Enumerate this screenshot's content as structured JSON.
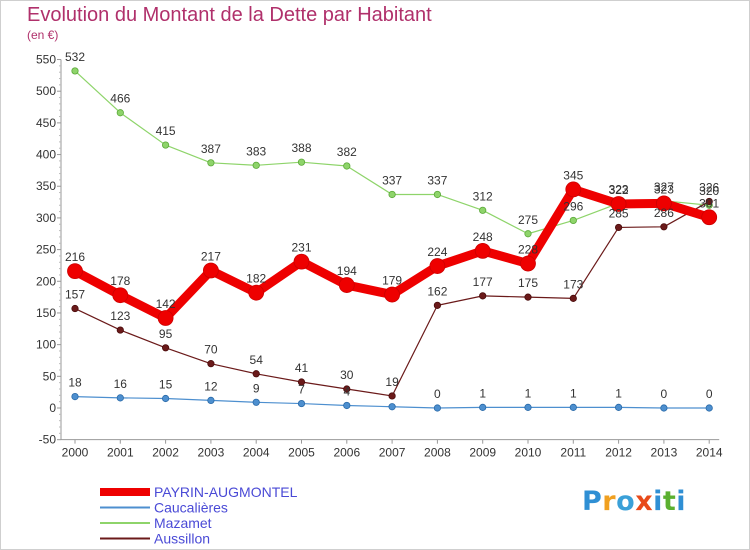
{
  "chart_data": {
    "type": "line",
    "title": "Evolution du Montant de la Dette par Habitant",
    "subtitle": "(en €)",
    "x": [
      "2000",
      "2001",
      "2002",
      "2003",
      "2004",
      "2005",
      "2006",
      "2007",
      "2008",
      "2009",
      "2010",
      "2011",
      "2012",
      "2013",
      "2014"
    ],
    "ylim": [
      -50,
      550
    ],
    "yticks": [
      -50,
      0,
      50,
      100,
      150,
      200,
      250,
      300,
      350,
      400,
      450,
      500,
      550
    ],
    "grid": false,
    "legend_position": "bottom-left",
    "series": [
      {
        "name": "PAYRIN-AUGMONTEL",
        "color": "#ee0000",
        "values": [
          216,
          178,
          142,
          217,
          182,
          231,
          194,
          179,
          224,
          248,
          228,
          345,
          322,
          323,
          301
        ]
      },
      {
        "name": "Caucalières",
        "color": "#4d8fcf",
        "values": [
          18,
          16,
          15,
          12,
          9,
          7,
          4,
          2,
          0,
          1,
          1,
          1,
          1,
          0,
          0
        ]
      },
      {
        "name": "Mazamet",
        "color": "#8ed46a",
        "values": [
          532,
          466,
          415,
          387,
          383,
          388,
          382,
          337,
          337,
          312,
          275,
          296,
          323,
          327,
          320
        ]
      },
      {
        "name": "Aussillon",
        "color": "#6b1a1a",
        "values": [
          157,
          123,
          95,
          70,
          54,
          41,
          30,
          19,
          162,
          177,
          175,
          173,
          285,
          286,
          326
        ]
      }
    ],
    "data_labels": {
      "PAYRIN-AUGMONTEL": [
        "216",
        "178",
        "142",
        "217",
        "182",
        "231",
        "194",
        "179",
        "224",
        "248",
        "228",
        "345",
        "322",
        "323",
        "301"
      ],
      "Caucalières": [
        "18",
        "16",
        "15",
        "12",
        "9",
        "7",
        "4",
        "",
        "0",
        "1",
        "1",
        "1",
        "1",
        "0",
        "0"
      ],
      "Mazamet": [
        "532",
        "466",
        "415",
        "387",
        "383",
        "388",
        "382",
        "337",
        "337",
        "312",
        "275",
        "296",
        "323",
        "327",
        "320"
      ],
      "Aussillon": [
        "157",
        "123",
        "95",
        "70",
        "54",
        "41",
        "30",
        "19",
        "162",
        "177",
        "175",
        "173",
        "285",
        "286",
        "326"
      ]
    }
  },
  "logo": {
    "text": "Proxiti"
  }
}
